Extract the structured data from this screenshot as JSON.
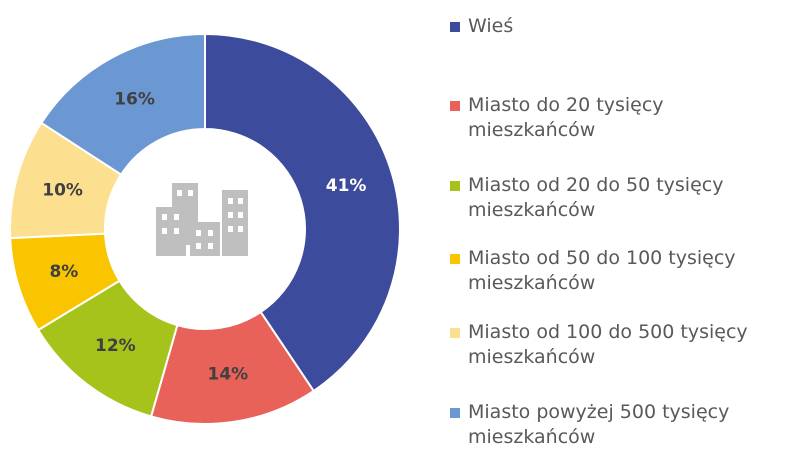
{
  "chart_data": {
    "type": "donut",
    "categories": [
      "Wieś",
      "Miasto do 20 tysięcy mieszkańców",
      "Miasto od 20 do 50 tysięcy mieszkańców",
      "Miasto od 50 do 100 tysięcy mieszkańców",
      "Miasto od 100 do 500 tysięcy mieszkańców",
      "Miasto powyżej 500 tysięcy mieszkańców"
    ],
    "values": [
      41,
      14,
      12,
      8,
      10,
      16
    ],
    "value_labels": [
      "41%",
      "14%",
      "12%",
      "8%",
      "10%",
      "16%"
    ],
    "colors": [
      "#3d4b9c",
      "#e8625a",
      "#a6c31b",
      "#f9c400",
      "#fde08f",
      "#6b98d2"
    ],
    "legend": "right"
  }
}
